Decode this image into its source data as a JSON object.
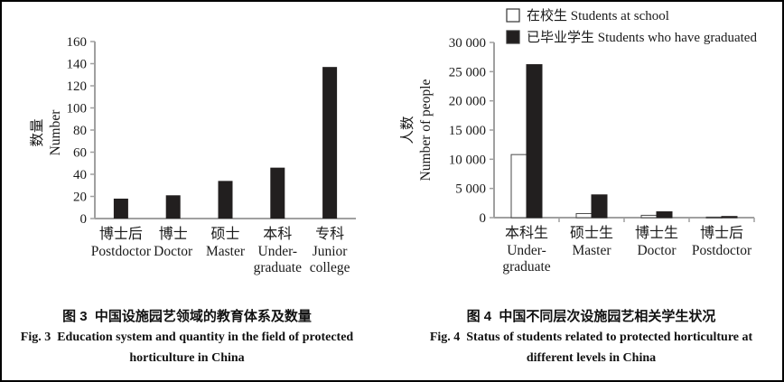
{
  "panel": {
    "background": "#ffffff",
    "border_color": "#000000"
  },
  "chart_data": [
    {
      "type": "bar",
      "caption_zh": "图 3  中国设施园艺领域的教育体系及数量",
      "caption_en_line1": "Fig. 3  Education system and quantity in the field of protected",
      "caption_en_line2": "horticulture in China",
      "ylabel_zh": "数量",
      "ylabel_en": "Number",
      "ylim": [
        0,
        160
      ],
      "ytick_step": 20,
      "yticks": [
        "0",
        "20",
        "40",
        "60",
        "80",
        "100",
        "120",
        "140",
        "160"
      ],
      "grid": false,
      "categories_zh": [
        "博士后",
        "博士",
        "硕士",
        "本科",
        "专科"
      ],
      "categories_en": [
        [
          "Postdoctor"
        ],
        [
          "Doctor"
        ],
        [
          "Master"
        ],
        [
          "Under-",
          "graduate"
        ],
        [
          "Junior",
          "college"
        ]
      ],
      "values": [
        18,
        21,
        34,
        46,
        137
      ],
      "bar_color": "#221f1f"
    },
    {
      "type": "bar",
      "caption_zh": "图 4  中国不同层次设施园艺相关学生状况",
      "caption_en_line1": "Fig. 4  Status of students related to protected horticulture at",
      "caption_en_line2": "different levels in China",
      "ylabel_zh": "人数",
      "ylabel_en": "Number of people",
      "ylim": [
        0,
        30000
      ],
      "ytick_step": 5000,
      "yticks": [
        "0",
        "5 000",
        "10 000",
        "15 000",
        "20 000",
        "25 000",
        "30 000"
      ],
      "grid": false,
      "legend_position": "top-right",
      "categories_zh": [
        "本科生",
        "硕士生",
        "博士生",
        "博士后"
      ],
      "categories_en": [
        [
          "Under-",
          "graduate"
        ],
        [
          "Master"
        ],
        [
          "Doctor"
        ],
        [
          "Postdoctor"
        ]
      ],
      "series": [
        {
          "name_zh": "在校生",
          "name_en": "Students at school",
          "fill": "#ffffff",
          "stroke": "#4a4a4a",
          "values": [
            10800,
            700,
            400,
            100
          ]
        },
        {
          "name_zh": "已毕业学生",
          "name_en": "Students who have graduated",
          "fill": "#221f1f",
          "stroke": "#221f1f",
          "values": [
            26200,
            3900,
            1000,
            200
          ]
        }
      ]
    }
  ]
}
